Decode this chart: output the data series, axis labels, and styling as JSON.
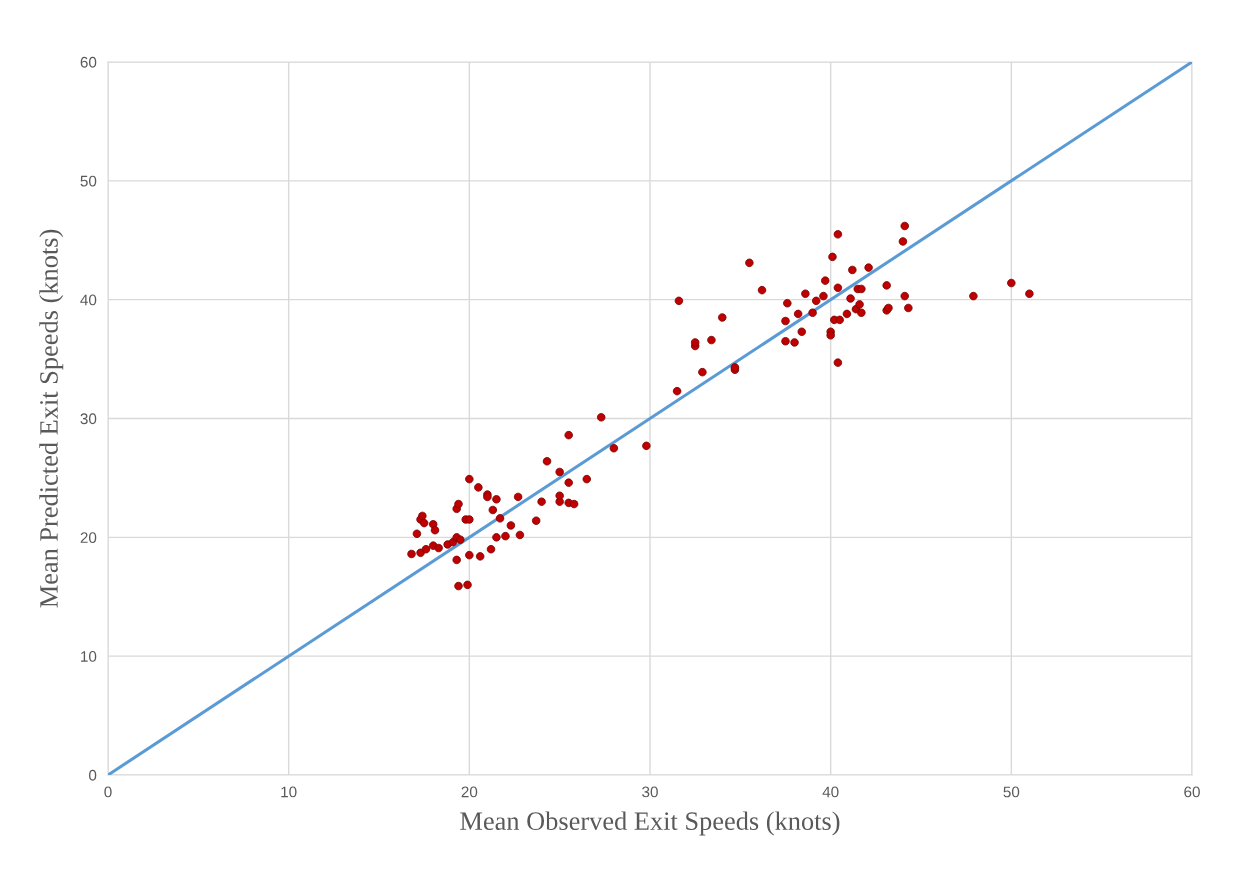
{
  "chart_data": {
    "type": "scatter",
    "xlabel": "Mean Observed Exit Speeds (knots)",
    "ylabel": "Mean Predicted Exit Speeds (knots)",
    "xlim": [
      0,
      60
    ],
    "ylim": [
      0,
      60
    ],
    "xticks": [
      0,
      10,
      20,
      30,
      40,
      50,
      60
    ],
    "yticks": [
      0,
      10,
      20,
      30,
      40,
      50,
      60
    ],
    "grid": true,
    "series": [
      {
        "type": "line",
        "color": "#5b9bd5",
        "x": [
          0,
          60
        ],
        "values": [
          0,
          60
        ]
      },
      {
        "color": "#c00000",
        "marker": "circle",
        "x": [
          16.8,
          17.1,
          17.3,
          17.4,
          17.5,
          17.3,
          17.6,
          18.0,
          18.1,
          18.0,
          18.3,
          18.8,
          19.1,
          19.3,
          19.5,
          19.3,
          19.4,
          19.3,
          19.4,
          19.9,
          19.8,
          20.0,
          20.0,
          20.0,
          20.5,
          20.6,
          21.0,
          21.0,
          21.2,
          21.3,
          21.5,
          21.5,
          21.7,
          22.0,
          22.3,
          22.7,
          22.8,
          23.7,
          24.0,
          24.3,
          25.0,
          25.0,
          25.0,
          25.5,
          25.8,
          25.5,
          25.5,
          26.5,
          27.3,
          28.0,
          29.8,
          31.5,
          31.6,
          32.5,
          32.5,
          32.9,
          33.4,
          34.0,
          34.7,
          34.7,
          35.5,
          36.2,
          37.5,
          37.5,
          37.6,
          38.0,
          38.2,
          38.4,
          38.6,
          39.0,
          39.2,
          39.6,
          39.7,
          40.1,
          40.0,
          40.0,
          40.2,
          40.4,
          40.4,
          40.4,
          40.5,
          40.9,
          41.1,
          41.2,
          41.4,
          41.5,
          41.6,
          41.7,
          41.7,
          42.1,
          43.1,
          43.1,
          43.2,
          44.0,
          44.1,
          44.1,
          44.3,
          47.9,
          50.0,
          51.0
        ],
        "values": [
          18.6,
          20.3,
          21.5,
          21.8,
          21.2,
          18.7,
          19.0,
          21.1,
          20.6,
          19.3,
          19.1,
          19.4,
          19.6,
          20.0,
          19.8,
          22.4,
          22.8,
          18.1,
          15.9,
          16.0,
          21.5,
          21.5,
          18.5,
          24.9,
          24.2,
          18.4,
          23.6,
          23.4,
          19.0,
          22.3,
          23.2,
          20.0,
          21.6,
          20.1,
          21.0,
          23.4,
          20.2,
          21.4,
          23.0,
          26.4,
          25.5,
          23.0,
          23.5,
          22.9,
          22.8,
          24.6,
          28.6,
          24.9,
          30.1,
          27.5,
          27.7,
          32.3,
          39.9,
          36.1,
          36.4,
          33.9,
          36.6,
          38.5,
          34.1,
          34.3,
          43.1,
          40.8,
          36.5,
          38.2,
          39.7,
          36.4,
          38.8,
          37.3,
          40.5,
          38.9,
          39.9,
          40.3,
          41.6,
          43.6,
          37.3,
          37.0,
          38.3,
          45.5,
          41.0,
          34.7,
          38.3,
          38.8,
          40.1,
          42.5,
          39.2,
          40.9,
          39.6,
          40.9,
          38.9,
          42.7,
          41.2,
          39.1,
          39.3,
          44.9,
          46.2,
          40.3,
          39.3,
          40.3,
          41.4,
          40.5
        ]
      }
    ]
  }
}
